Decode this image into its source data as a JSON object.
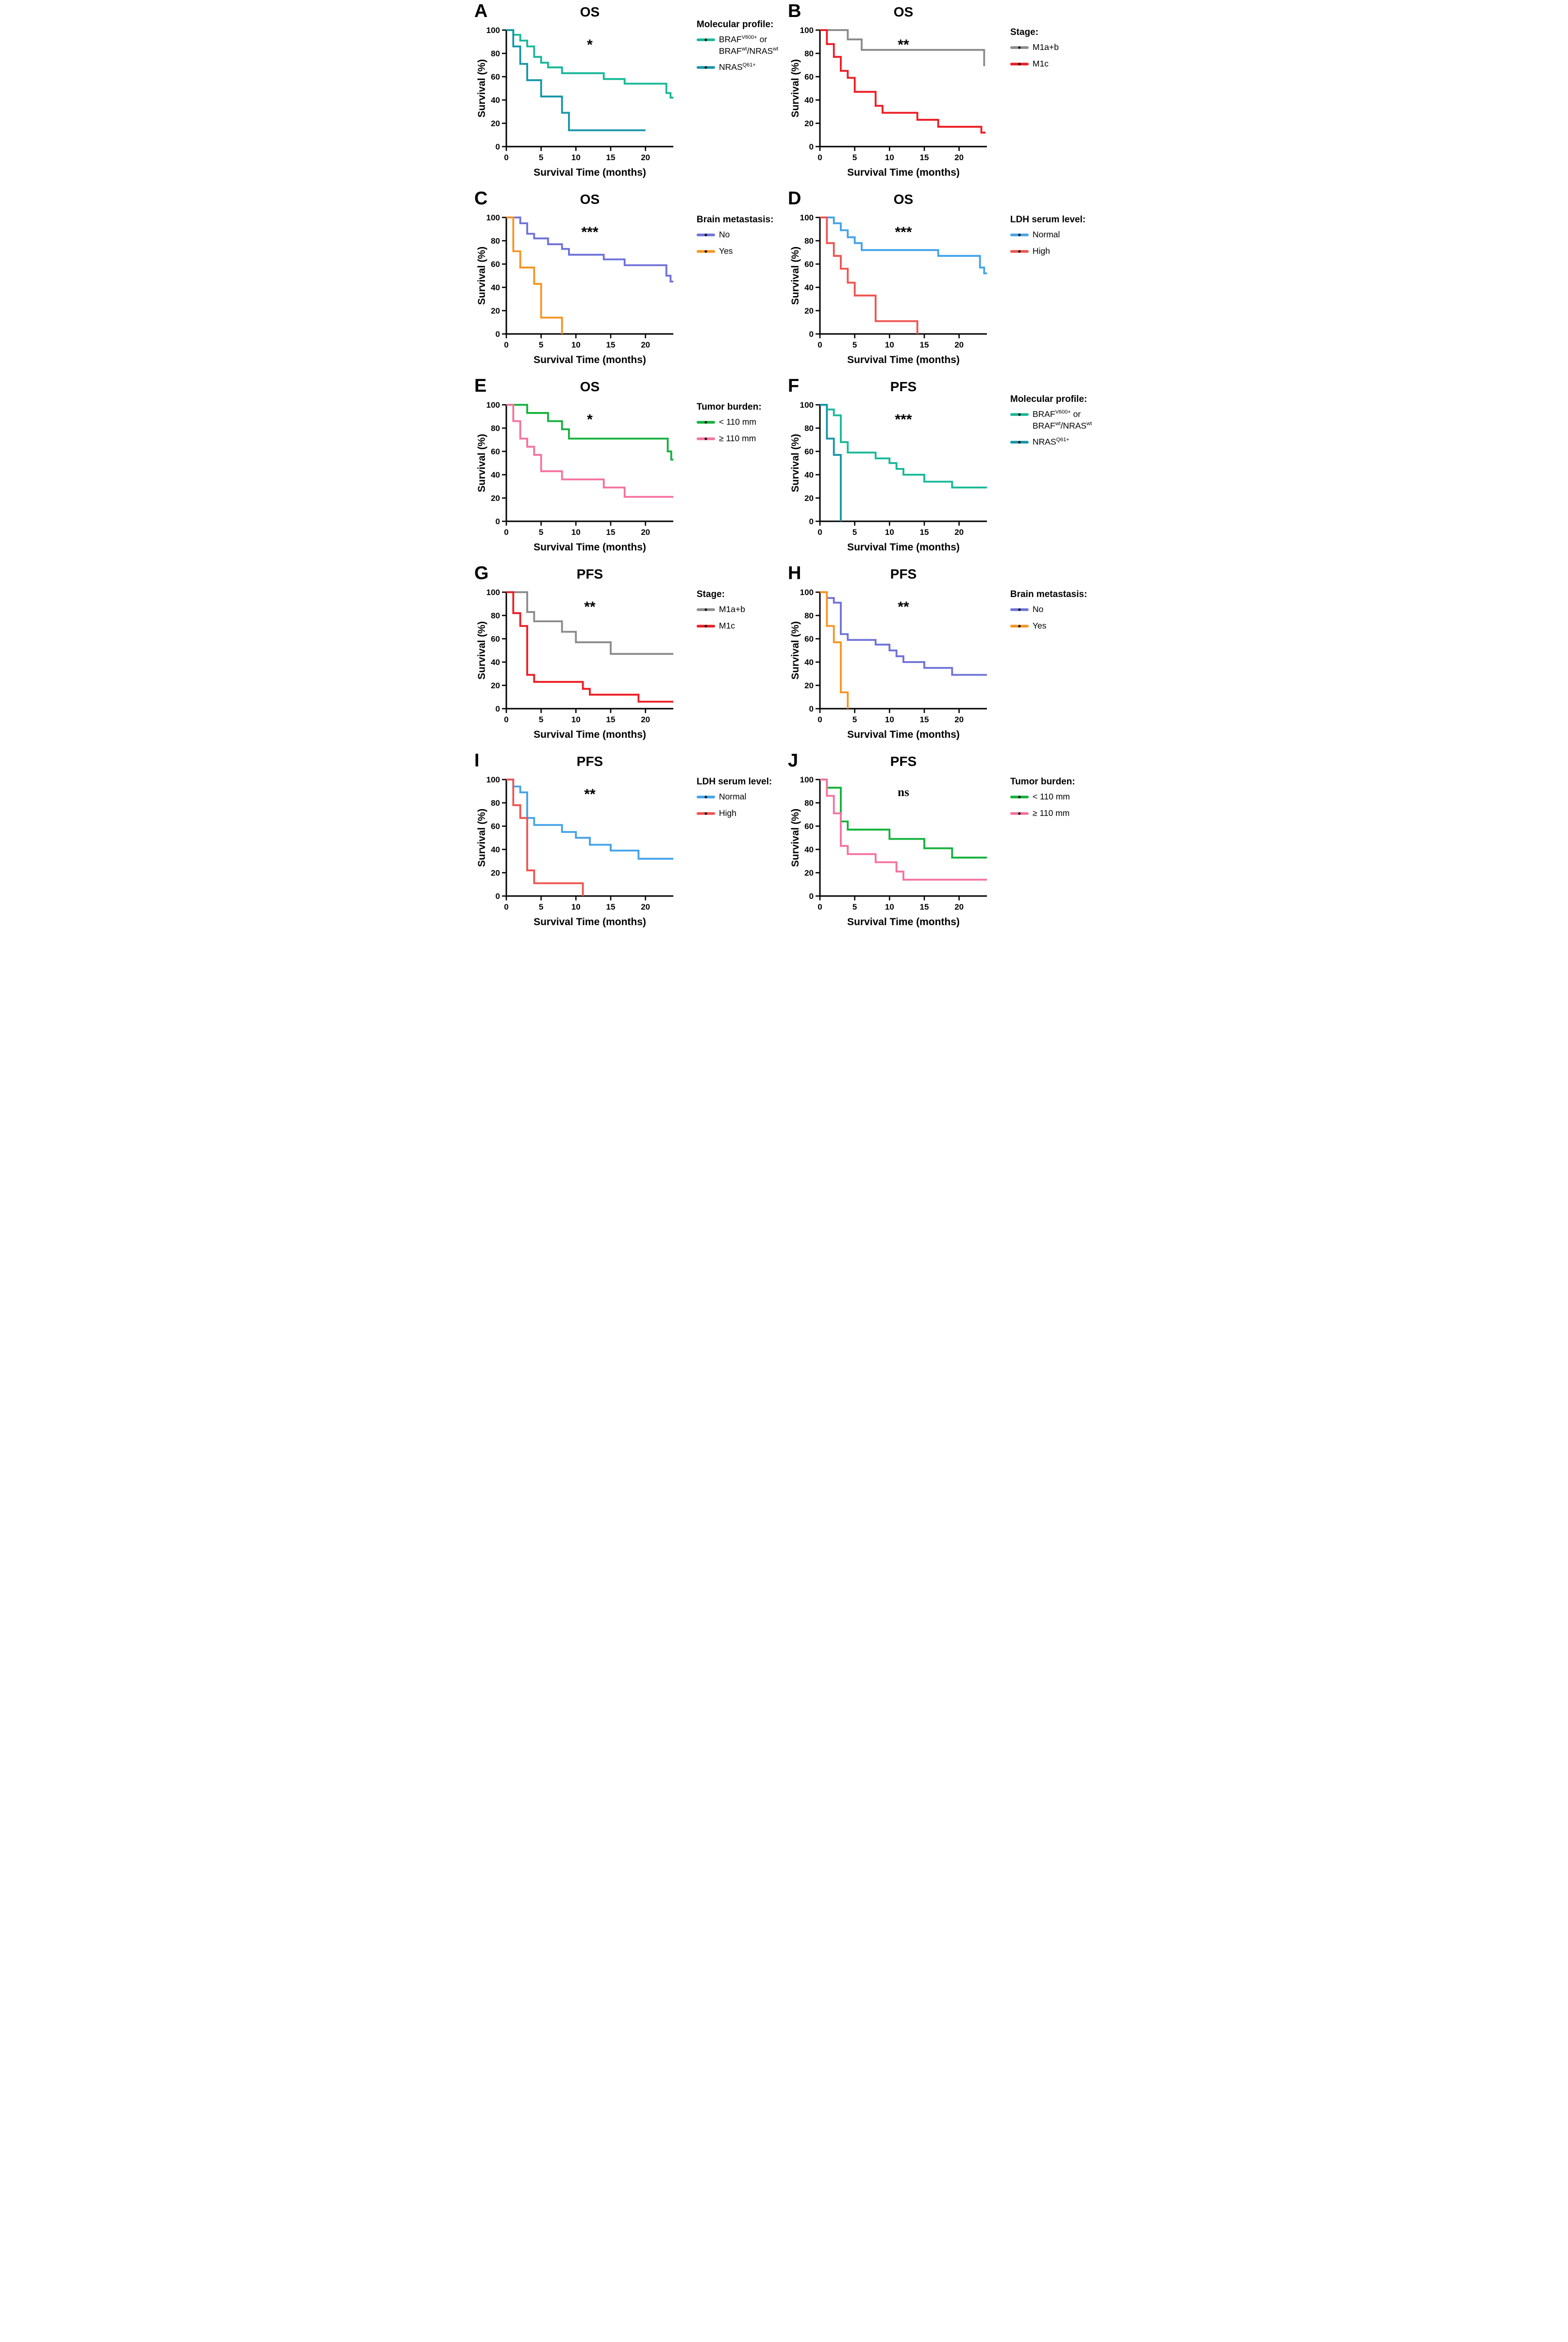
{
  "figure_labels": {
    "xlabel": "Survival Time (months)",
    "ylabel": "Survival (%)"
  },
  "axes": {
    "x_ticks": [
      0,
      5,
      10,
      15,
      20
    ],
    "x_max": 24,
    "y_ticks": [
      0,
      20,
      40,
      60,
      80,
      100
    ],
    "y_max": 100
  },
  "chart_data": [
    {
      "panel": "A",
      "type": "step",
      "title": "OS",
      "significance": "*",
      "sig_style": "asterisk",
      "legend_title": "Molecular profile:",
      "xlabel": "Survival Time (months)",
      "ylabel": "Survival (%)",
      "series": [
        {
          "name": "BRAF V600+ or BRAF wt/NRAS wt",
          "color": "#16b897",
          "label_parts": [
            {
              "t": "BRAF"
            },
            {
              "t": "V600+",
              "sup": true
            },
            {
              "t": " or"
            },
            {
              "nl": true
            },
            {
              "t": "BRAF"
            },
            {
              "t": "wt",
              "sup": true
            },
            {
              "t": "/NRAS"
            },
            {
              "t": "wt",
              "sup": true
            }
          ],
          "points": [
            [
              0,
              100
            ],
            [
              1,
              96
            ],
            [
              2,
              91
            ],
            [
              3,
              86
            ],
            [
              4,
              77
            ],
            [
              5,
              72
            ],
            [
              6,
              68
            ],
            [
              8,
              63
            ],
            [
              14,
              58
            ],
            [
              17,
              54
            ],
            [
              23,
              46
            ],
            [
              23.6,
              42
            ]
          ],
          "end_x": 24
        },
        {
          "name": "NRAS Q61+",
          "color": "#1695a8",
          "label_parts": [
            {
              "t": "NRAS"
            },
            {
              "t": "Q61+",
              "sup": true
            }
          ],
          "points": [
            [
              0,
              100
            ],
            [
              1,
              86
            ],
            [
              2,
              71
            ],
            [
              3,
              57
            ],
            [
              5,
              43
            ],
            [
              8,
              29
            ],
            [
              9,
              14
            ]
          ],
          "end_x": 20
        }
      ]
    },
    {
      "panel": "B",
      "type": "step",
      "title": "OS",
      "significance": "**",
      "sig_style": "asterisk",
      "legend_title": "Stage:",
      "xlabel": "Survival Time (months)",
      "ylabel": "Survival (%)",
      "series": [
        {
          "name": "M1a+b",
          "color": "#8b8b8b",
          "label_parts": [
            {
              "t": "M1a+b"
            }
          ],
          "points": [
            [
              0,
              100
            ],
            [
              4,
              92
            ],
            [
              6,
              83
            ],
            [
              23.6,
              69
            ]
          ],
          "end_x": 23.6
        },
        {
          "name": "M1c",
          "color": "#ed1c24",
          "label_parts": [
            {
              "t": "M1c"
            }
          ],
          "points": [
            [
              0,
              100
            ],
            [
              1,
              88
            ],
            [
              2,
              77
            ],
            [
              3,
              65
            ],
            [
              4,
              59
            ],
            [
              5,
              47
            ],
            [
              8,
              35
            ],
            [
              9,
              29
            ],
            [
              14,
              23
            ],
            [
              17,
              17
            ],
            [
              23.2,
              12
            ]
          ],
          "end_x": 23.8
        }
      ]
    },
    {
      "panel": "C",
      "type": "step",
      "title": "OS",
      "significance": "***",
      "sig_style": "asterisk",
      "legend_title": "Brain metastasis:",
      "xlabel": "Survival Time (months)",
      "ylabel": "Survival (%)",
      "series": [
        {
          "name": "No",
          "color": "#6f71d9",
          "label_parts": [
            {
              "t": "No"
            }
          ],
          "points": [
            [
              0,
              100
            ],
            [
              2,
              95
            ],
            [
              3,
              86
            ],
            [
              4,
              82
            ],
            [
              6,
              77
            ],
            [
              8,
              73
            ],
            [
              9,
              68
            ],
            [
              14,
              64
            ],
            [
              17,
              59
            ],
            [
              23,
              50
            ],
            [
              23.6,
              45
            ]
          ],
          "end_x": 24
        },
        {
          "name": "Yes",
          "color": "#f89420",
          "label_parts": [
            {
              "t": "Yes"
            }
          ],
          "points": [
            [
              0,
              100
            ],
            [
              1,
              71
            ],
            [
              2,
              57
            ],
            [
              4,
              43
            ],
            [
              5,
              14
            ],
            [
              8,
              0
            ]
          ],
          "end_x": 8
        }
      ]
    },
    {
      "panel": "D",
      "type": "step",
      "title": "OS",
      "significance": "***",
      "sig_style": "asterisk",
      "legend_title": "LDH serum level:",
      "xlabel": "Survival Time (months)",
      "ylabel": "Survival (%)",
      "series": [
        {
          "name": "Normal",
          "color": "#42a3e8",
          "label_parts": [
            {
              "t": "Normal"
            }
          ],
          "points": [
            [
              0,
              100
            ],
            [
              2,
              95
            ],
            [
              3,
              89
            ],
            [
              4,
              83
            ],
            [
              5,
              78
            ],
            [
              6,
              72
            ],
            [
              17,
              67
            ],
            [
              23,
              57
            ],
            [
              23.6,
              52
            ]
          ],
          "end_x": 24
        },
        {
          "name": "High",
          "color": "#ef5350",
          "label_parts": [
            {
              "t": "High"
            }
          ],
          "points": [
            [
              0,
              100
            ],
            [
              1,
              78
            ],
            [
              2,
              67
            ],
            [
              3,
              56
            ],
            [
              4,
              44
            ],
            [
              5,
              33
            ],
            [
              8,
              11
            ],
            [
              14,
              0
            ]
          ],
          "end_x": 14
        }
      ]
    },
    {
      "panel": "E",
      "type": "step",
      "title": "OS",
      "significance": "*",
      "sig_style": "asterisk",
      "legend_title": "Tumor burden:",
      "xlabel": "Survival Time (months)",
      "ylabel": "Survival (%)",
      "series": [
        {
          "name": "< 110 mm",
          "color": "#12b13a",
          "label_parts": [
            {
              "t": "< 110 mm"
            }
          ],
          "points": [
            [
              0,
              100
            ],
            [
              3,
              93
            ],
            [
              6,
              86
            ],
            [
              8,
              79
            ],
            [
              9,
              71
            ],
            [
              23.2,
              60
            ],
            [
              23.7,
              53
            ]
          ],
          "end_x": 24
        },
        {
          "name": "≥ 110 mm",
          "color": "#f5719f",
          "label_parts": [
            {
              "t": "≥ 110 mm"
            }
          ],
          "points": [
            [
              0,
              100
            ],
            [
              1,
              86
            ],
            [
              2,
              71
            ],
            [
              3,
              64
            ],
            [
              4,
              57
            ],
            [
              5,
              43
            ],
            [
              8,
              36
            ],
            [
              14,
              29
            ],
            [
              17,
              21
            ]
          ],
          "end_x": 24
        }
      ]
    },
    {
      "panel": "F",
      "type": "step",
      "title": "PFS",
      "significance": "***",
      "sig_style": "asterisk",
      "legend_title": "Molecular profile:",
      "xlabel": "Survival Time (months)",
      "ylabel": "Survival (%)",
      "series": [
        {
          "name": "BRAF V600+ or BRAF wt/NRAS wt",
          "color": "#16b897",
          "label_parts": [
            {
              "t": "BRAF"
            },
            {
              "t": "V600+",
              "sup": true
            },
            {
              "t": " or"
            },
            {
              "nl": true
            },
            {
              "t": "BRAF"
            },
            {
              "t": "wt",
              "sup": true
            },
            {
              "t": "/NRAS"
            },
            {
              "t": "wt",
              "sup": true
            }
          ],
          "points": [
            [
              0,
              100
            ],
            [
              1,
              96
            ],
            [
              2,
              91
            ],
            [
              3,
              68
            ],
            [
              4,
              59
            ],
            [
              8,
              54
            ],
            [
              10,
              50
            ],
            [
              11,
              45
            ],
            [
              12,
              40
            ],
            [
              15,
              34
            ],
            [
              19,
              29
            ]
          ],
          "end_x": 24
        },
        {
          "name": "NRAS Q61+",
          "color": "#1695a8",
          "label_parts": [
            {
              "t": "NRAS"
            },
            {
              "t": "Q61+",
              "sup": true
            }
          ],
          "points": [
            [
              0,
              100
            ],
            [
              1,
              71
            ],
            [
              2,
              57
            ],
            [
              3,
              0
            ]
          ],
          "end_x": 3
        }
      ]
    },
    {
      "panel": "G",
      "type": "step",
      "title": "PFS",
      "significance": "**",
      "sig_style": "asterisk",
      "legend_title": "Stage:",
      "xlabel": "Survival Time (months)",
      "ylabel": "Survival (%)",
      "series": [
        {
          "name": "M1a+b",
          "color": "#8b8b8b",
          "label_parts": [
            {
              "t": "M1a+b"
            }
          ],
          "points": [
            [
              0,
              100
            ],
            [
              3,
              83
            ],
            [
              4,
              75
            ],
            [
              8,
              66
            ],
            [
              10,
              57
            ],
            [
              15,
              47
            ]
          ],
          "end_x": 24
        },
        {
          "name": "M1c",
          "color": "#ed1c24",
          "label_parts": [
            {
              "t": "M1c"
            }
          ],
          "points": [
            [
              0,
              100
            ],
            [
              1,
              82
            ],
            [
              2,
              71
            ],
            [
              3,
              29
            ],
            [
              4,
              23
            ],
            [
              11,
              17
            ],
            [
              12,
              12
            ],
            [
              19,
              6
            ]
          ],
          "end_x": 24
        }
      ]
    },
    {
      "panel": "H",
      "type": "step",
      "title": "PFS",
      "significance": "**",
      "sig_style": "asterisk",
      "legend_title": "Brain metastasis:",
      "xlabel": "Survival Time (months)",
      "ylabel": "Survival (%)",
      "series": [
        {
          "name": "No",
          "color": "#6f71d9",
          "label_parts": [
            {
              "t": "No"
            }
          ],
          "points": [
            [
              0,
              100
            ],
            [
              1,
              95
            ],
            [
              2,
              91
            ],
            [
              3,
              64
            ],
            [
              4,
              59
            ],
            [
              8,
              55
            ],
            [
              10,
              50
            ],
            [
              11,
              45
            ],
            [
              12,
              40
            ],
            [
              15,
              35
            ],
            [
              19,
              29
            ]
          ],
          "end_x": 24
        },
        {
          "name": "Yes",
          "color": "#f89420",
          "label_parts": [
            {
              "t": "Yes"
            }
          ],
          "points": [
            [
              0,
              100
            ],
            [
              1,
              71
            ],
            [
              2,
              57
            ],
            [
              3,
              14
            ],
            [
              4,
              0
            ]
          ],
          "end_x": 4
        }
      ]
    },
    {
      "panel": "I",
      "type": "step",
      "title": "PFS",
      "significance": "**",
      "sig_style": "asterisk",
      "legend_title": "LDH serum level:",
      "xlabel": "Survival Time (months)",
      "ylabel": "Survival (%)",
      "series": [
        {
          "name": "Normal",
          "color": "#42a3e8",
          "label_parts": [
            {
              "t": "Normal"
            }
          ],
          "points": [
            [
              0,
              100
            ],
            [
              1,
              94
            ],
            [
              2,
              89
            ],
            [
              3,
              67
            ],
            [
              4,
              61
            ],
            [
              8,
              55
            ],
            [
              10,
              50
            ],
            [
              12,
              44
            ],
            [
              15,
              39
            ],
            [
              19,
              32
            ]
          ],
          "end_x": 24
        },
        {
          "name": "High",
          "color": "#ef5350",
          "label_parts": [
            {
              "t": "High"
            }
          ],
          "points": [
            [
              0,
              100
            ],
            [
              1,
              78
            ],
            [
              2,
              67
            ],
            [
              3,
              22
            ],
            [
              4,
              11
            ],
            [
              11,
              0
            ]
          ],
          "end_x": 11
        }
      ]
    },
    {
      "panel": "J",
      "type": "step",
      "title": "PFS",
      "significance": "ns",
      "sig_style": "serif",
      "legend_title": "Tumor burden:",
      "xlabel": "Survival Time (months)",
      "ylabel": "Survival (%)",
      "series": [
        {
          "name": "< 110 mm",
          "color": "#12b13a",
          "label_parts": [
            {
              "t": "< 110 mm"
            }
          ],
          "points": [
            [
              0,
              100
            ],
            [
              1,
              93
            ],
            [
              3,
              64
            ],
            [
              4,
              57
            ],
            [
              10,
              49
            ],
            [
              15,
              41
            ],
            [
              19,
              33
            ]
          ],
          "end_x": 24
        },
        {
          "name": "≥ 110 mm",
          "color": "#f5719f",
          "label_parts": [
            {
              "t": "≥ 110 mm"
            }
          ],
          "points": [
            [
              0,
              100
            ],
            [
              1,
              86
            ],
            [
              2,
              71
            ],
            [
              3,
              43
            ],
            [
              4,
              36
            ],
            [
              8,
              29
            ],
            [
              11,
              21
            ],
            [
              12,
              14
            ]
          ],
          "end_x": 24
        }
      ]
    }
  ]
}
